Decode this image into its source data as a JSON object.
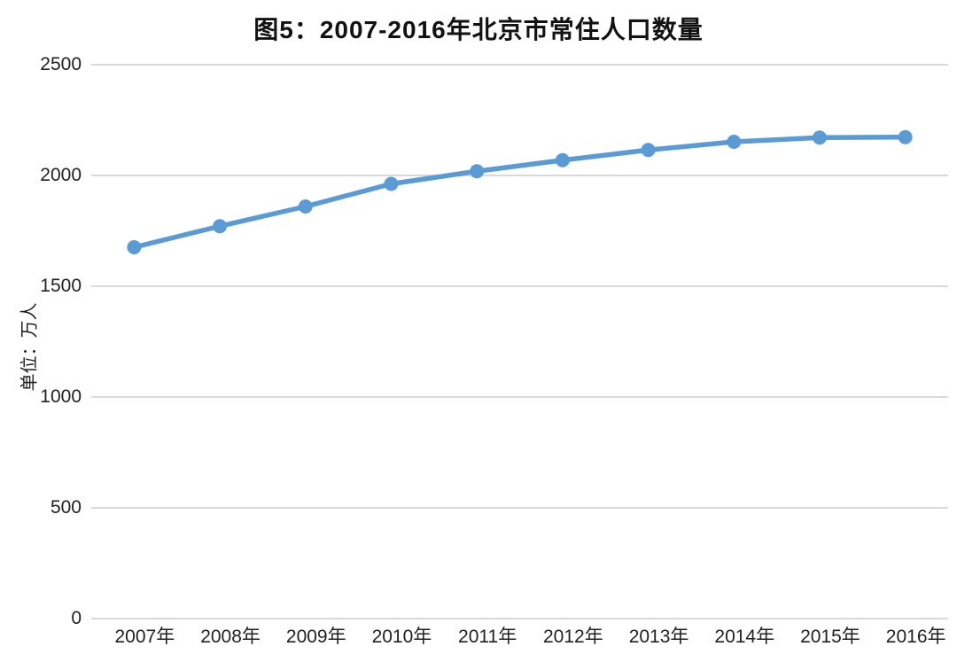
{
  "chart_data": {
    "type": "line",
    "title": "图5：2007-2016年北京市常住人口数量",
    "ylabel": "单位：万人",
    "xlabel": "",
    "categories": [
      "2007年",
      "2008年",
      "2009年",
      "2010年",
      "2011年",
      "2012年",
      "2013年",
      "2014年",
      "2015年",
      "2016年"
    ],
    "series": [
      {
        "name": "常住人口",
        "values": [
          1676,
          1771,
          1860,
          1962,
          2019,
          2069,
          2115,
          2152,
          2171,
          2173
        ]
      }
    ],
    "ylim": [
      0,
      2500
    ],
    "yticks": [
      0,
      500,
      1000,
      1500,
      2000,
      2500
    ],
    "grid": "horizontal",
    "legend": "none"
  },
  "colors": {
    "line": "#5B9BD5",
    "gridline": "#D9D9D9",
    "axis_text": "#222222",
    "title_text": "#121212",
    "background": "#FFFFFF"
  }
}
